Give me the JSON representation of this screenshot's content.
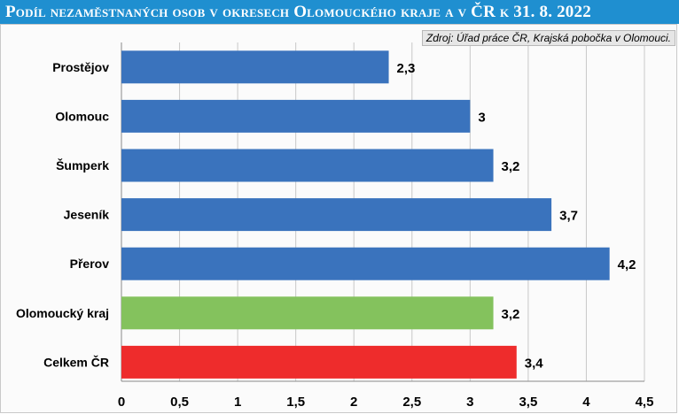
{
  "header": {
    "title": "Podíl nezaměstnaných osob v okresech Olomouckého kraje a v ČR k 31. 8. 2022",
    "source": "Zdroj: Úřad práce ČR, Krajská pobočka v Olomouci."
  },
  "colors": {
    "header_bg": "#1f8fd0",
    "district_bar": "#3a73bd",
    "region_bar": "#84c25d",
    "country_bar": "#ee2c2c",
    "gridline": "#c8c8c8"
  },
  "chart_data": {
    "type": "bar",
    "orientation": "horizontal",
    "title": "Podíl nezaměstnaných osob v okresech Olomouckého kraje a v ČR k 31. 8. 2022",
    "categories": [
      "Prostějov",
      "Olomouc",
      "Šumperk",
      "Jeseník",
      "Přerov",
      "Olomoucký kraj",
      "Celkem ČR"
    ],
    "values": [
      2.3,
      3,
      3.2,
      3.7,
      4.2,
      3.2,
      3.4
    ],
    "value_labels": [
      "2,3",
      "3",
      "3,2",
      "3,7",
      "4,2",
      "3,2",
      "3,4"
    ],
    "bar_colors": [
      "#3a73bd",
      "#3a73bd",
      "#3a73bd",
      "#3a73bd",
      "#3a73bd",
      "#84c25d",
      "#ee2c2c"
    ],
    "xlim": [
      0,
      4.5
    ],
    "x_ticks": [
      0,
      0.5,
      1,
      1.5,
      2,
      2.5,
      3,
      3.5,
      4,
      4.5
    ],
    "x_tick_labels": [
      "0",
      "0,5",
      "1",
      "1,5",
      "2",
      "2,5",
      "3",
      "3,5",
      "4",
      "4,5"
    ],
    "grid": true,
    "legend": "none"
  }
}
